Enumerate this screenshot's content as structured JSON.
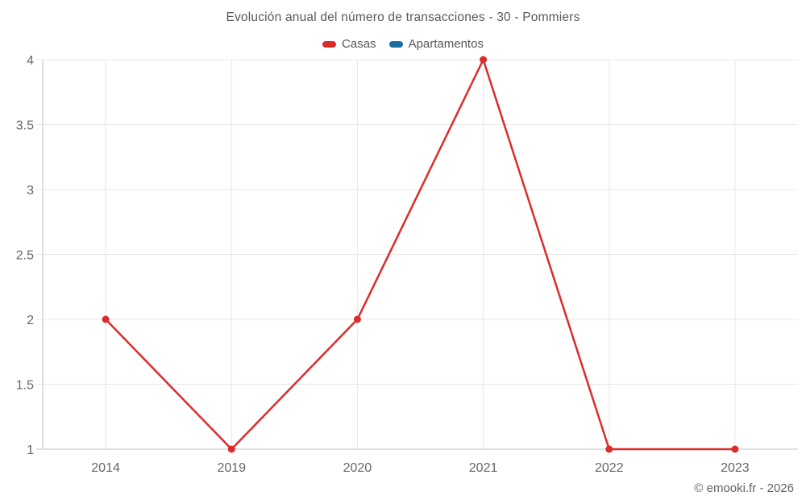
{
  "title": "Evolución anual del número de transacciones - 30 - Pommiers",
  "legend": [
    {
      "label": "Casas",
      "color": "#db2c2c"
    },
    {
      "label": "Apartamentos",
      "color": "#1a6d9e"
    }
  ],
  "footer": "© emooki.fr - 2026",
  "colors": {
    "grid": "#e8e8e8",
    "axis": "#d5d5d5",
    "tick_text": "#666666",
    "title_text": "#58595b"
  },
  "chart_data": {
    "type": "line",
    "title": "Evolución anual del número de transacciones - 30 - Pommiers",
    "categories": [
      "2014",
      "2019",
      "2020",
      "2021",
      "2022",
      "2023"
    ],
    "series": [
      {
        "name": "Casas",
        "color": "#db2c2c",
        "values": [
          2,
          1,
          2,
          4,
          1,
          1
        ]
      },
      {
        "name": "Apartamentos",
        "color": "#1a6d9e",
        "values": []
      }
    ],
    "xlabel": "",
    "ylabel": "",
    "ylim": [
      1,
      4
    ],
    "yticks": [
      1,
      1.5,
      2,
      2.5,
      3,
      3.5,
      4
    ],
    "yticklabels": [
      "1",
      "1.5",
      "2",
      "2.5",
      "3",
      "3.5",
      "4"
    ],
    "grid": true,
    "legend_position": "top",
    "marker": "circle"
  }
}
